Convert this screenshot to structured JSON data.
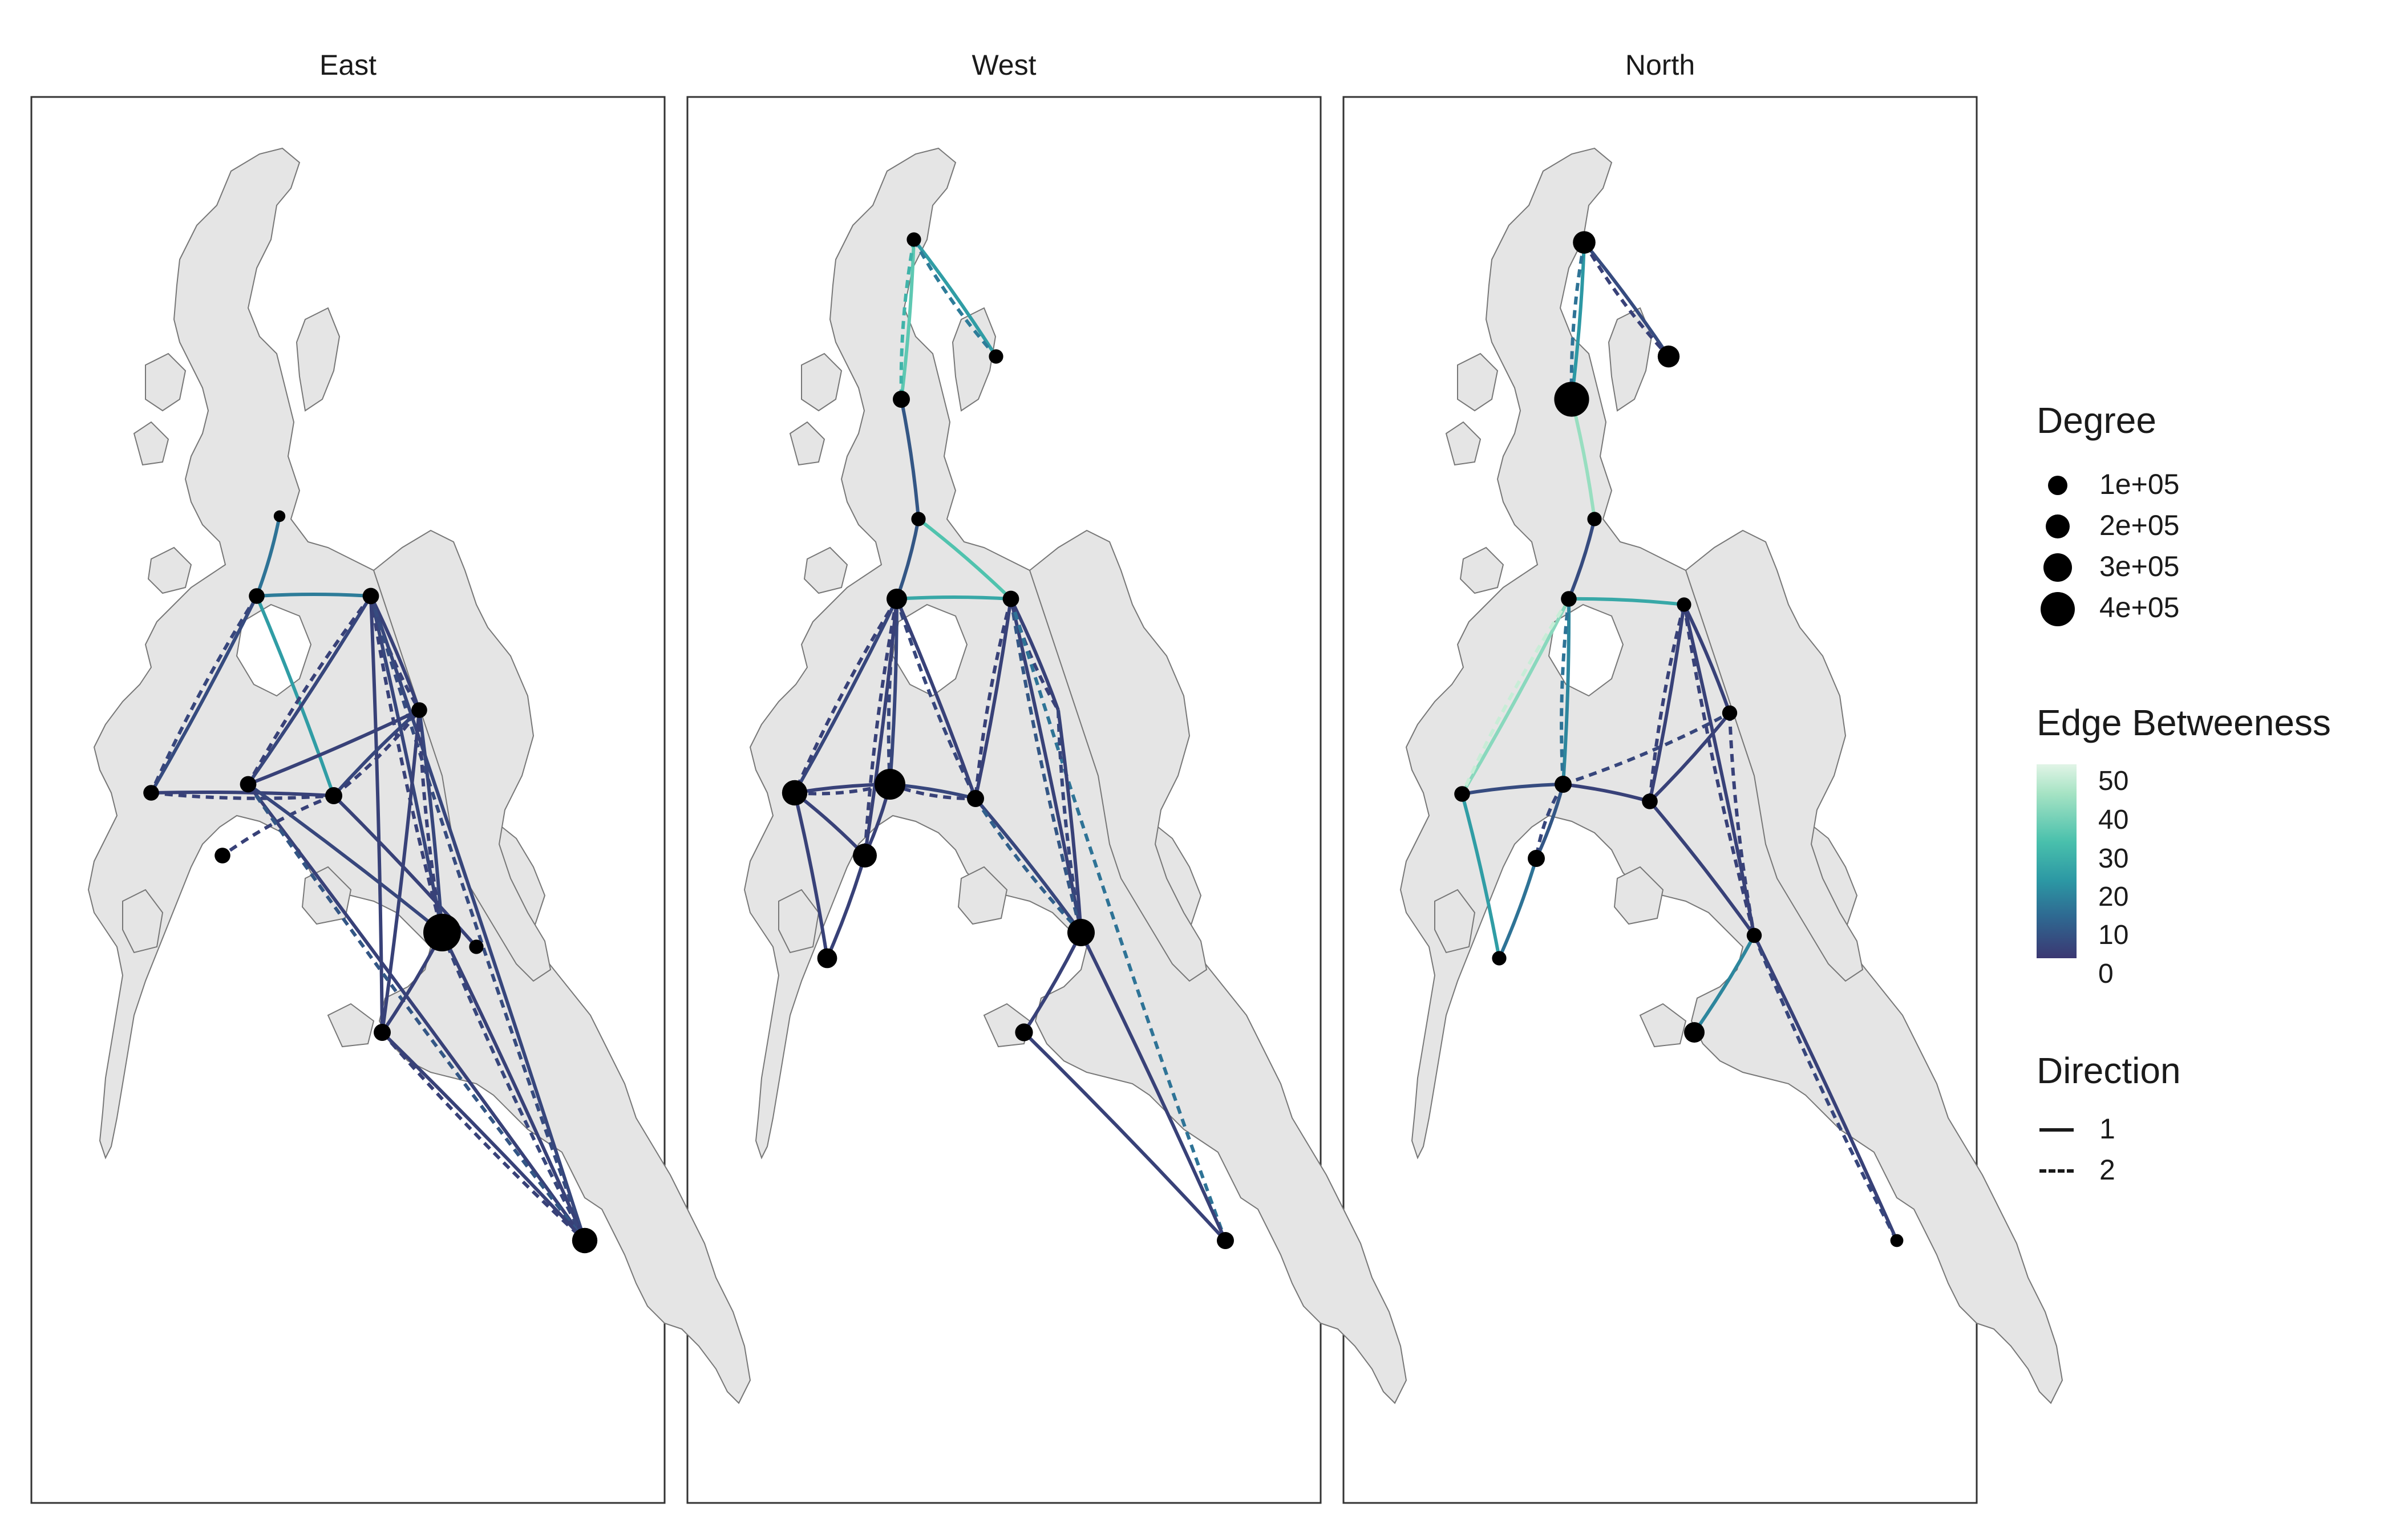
{
  "panels": [
    {
      "title": "East",
      "nodes": [
        {
          "id": "n1",
          "deg": 0.2
        },
        {
          "id": "n2",
          "deg": 0.8
        },
        {
          "id": "n3",
          "deg": 0.9
        },
        {
          "id": "n5",
          "deg": 0.8
        },
        {
          "id": "n8",
          "deg": 1.0
        },
        {
          "id": "n9",
          "deg": 0.8
        },
        {
          "id": "n10",
          "deg": 0.8
        },
        {
          "id": "n11",
          "deg": 0.6
        },
        {
          "id": "n12",
          "deg": 0.9
        },
        {
          "id": "n15",
          "deg": 4.0
        },
        {
          "id": "n16",
          "deg": 1.0
        },
        {
          "id": "n17",
          "deg": 2.2
        }
      ],
      "edges": [
        {
          "from": "n1",
          "to": "n2",
          "dir": 1,
          "btw": 12
        },
        {
          "from": "n2",
          "to": "n3",
          "dir": 1,
          "btw": 14
        },
        {
          "from": "n2",
          "to": "n8",
          "dir": 1,
          "btw": 22
        },
        {
          "from": "n2",
          "to": "n5",
          "dir": 1,
          "btw": 4
        },
        {
          "from": "n2",
          "to": "n5",
          "dir": 2,
          "btw": 3
        },
        {
          "from": "n3",
          "to": "n9",
          "dir": 1,
          "btw": 2
        },
        {
          "from": "n3",
          "to": "n9",
          "dir": 2,
          "btw": 2
        },
        {
          "from": "n3",
          "to": "n12",
          "dir": 1,
          "btw": 3
        },
        {
          "from": "n3",
          "to": "n12",
          "dir": 2,
          "btw": 2
        },
        {
          "from": "n3",
          "to": "n15",
          "dir": 1,
          "btw": 3
        },
        {
          "from": "n3",
          "to": "n15",
          "dir": 2,
          "btw": 2
        },
        {
          "from": "n3",
          "to": "n17",
          "dir": 1,
          "btw": 3
        },
        {
          "from": "n3",
          "to": "n17",
          "dir": 2,
          "btw": 4
        },
        {
          "from": "n3",
          "to": "n16",
          "dir": 1,
          "btw": 2
        },
        {
          "from": "n5",
          "to": "n8",
          "dir": 1,
          "btw": 2
        },
        {
          "from": "n5",
          "to": "n8",
          "dir": 2,
          "btw": 2
        },
        {
          "from": "n8",
          "to": "n9",
          "dir": 1,
          "btw": 3
        },
        {
          "from": "n8",
          "to": "n9",
          "dir": 2,
          "btw": 2
        },
        {
          "from": "n8",
          "to": "n10",
          "dir": 2,
          "btw": 2
        },
        {
          "from": "n8",
          "to": "n11",
          "dir": 1,
          "btw": 2
        },
        {
          "from": "n9",
          "to": "n12",
          "dir": 1,
          "btw": 2
        },
        {
          "from": "n9",
          "to": "n15",
          "dir": 1,
          "btw": 3
        },
        {
          "from": "n9",
          "to": "n15",
          "dir": 2,
          "btw": 2
        },
        {
          "from": "n9",
          "to": "n16",
          "dir": 1,
          "btw": 2
        },
        {
          "from": "n12",
          "to": "n15",
          "dir": 1,
          "btw": 3
        },
        {
          "from": "n12",
          "to": "n17",
          "dir": 1,
          "btw": 2
        },
        {
          "from": "n12",
          "to": "n17",
          "dir": 2,
          "btw": 6
        },
        {
          "from": "n15",
          "to": "n17",
          "dir": 1,
          "btw": 2
        },
        {
          "from": "n15",
          "to": "n17",
          "dir": 2,
          "btw": 3
        },
        {
          "from": "n15",
          "to": "n16",
          "dir": 1,
          "btw": 2
        },
        {
          "from": "n16",
          "to": "n17",
          "dir": 1,
          "btw": 2
        },
        {
          "from": "n16",
          "to": "n17",
          "dir": 2,
          "btw": 2
        }
      ]
    },
    {
      "title": "West",
      "nodes": [
        {
          "id": "n4",
          "deg": 0.6
        },
        {
          "id": "n6",
          "deg": 0.6
        },
        {
          "id": "n7",
          "deg": 1.0
        },
        {
          "id": "n0",
          "deg": 0.6
        },
        {
          "id": "n3",
          "deg": 0.9
        },
        {
          "id": "n2",
          "deg": 1.5
        },
        {
          "id": "n5",
          "deg": 2.2
        },
        {
          "id": "n6b",
          "deg": 3.0
        },
        {
          "id": "n13",
          "deg": 2.0
        },
        {
          "id": "n14",
          "deg": 1.4
        },
        {
          "id": "n8",
          "deg": 1.0
        },
        {
          "id": "n12",
          "deg": 0.9
        },
        {
          "id": "n15",
          "deg": 2.5
        },
        {
          "id": "n16",
          "deg": 1.1
        },
        {
          "id": "n17",
          "deg": 1.0
        }
      ],
      "edges": [
        {
          "from": "n4",
          "to": "n6",
          "dir": 1,
          "btw": 22
        },
        {
          "from": "n4",
          "to": "n6",
          "dir": 2,
          "btw": 14
        },
        {
          "from": "n4",
          "to": "n7",
          "dir": 1,
          "btw": 38
        },
        {
          "from": "n4",
          "to": "n7",
          "dir": 2,
          "btw": 30
        },
        {
          "from": "n7",
          "to": "n0",
          "dir": 1,
          "btw": 6
        },
        {
          "from": "n0",
          "to": "n2",
          "dir": 1,
          "btw": 6
        },
        {
          "from": "n0",
          "to": "n3",
          "dir": 1,
          "btw": 36
        },
        {
          "from": "n2",
          "to": "n3",
          "dir": 1,
          "btw": 26
        },
        {
          "from": "n2",
          "to": "n5",
          "dir": 1,
          "btw": 3
        },
        {
          "from": "n2",
          "to": "n5",
          "dir": 2,
          "btw": 2
        },
        {
          "from": "n2",
          "to": "n6b",
          "dir": 1,
          "btw": 3
        },
        {
          "from": "n2",
          "to": "n6b",
          "dir": 2,
          "btw": 3
        },
        {
          "from": "n2",
          "to": "n13",
          "dir": 1,
          "btw": 2
        },
        {
          "from": "n2",
          "to": "n13",
          "dir": 2,
          "btw": 2
        },
        {
          "from": "n2",
          "to": "n8",
          "dir": 1,
          "btw": 2
        },
        {
          "from": "n2",
          "to": "n8",
          "dir": 2,
          "btw": 3
        },
        {
          "from": "n3",
          "to": "n8",
          "dir": 1,
          "btw": 2
        },
        {
          "from": "n3",
          "to": "n8",
          "dir": 2,
          "btw": 2
        },
        {
          "from": "n3",
          "to": "n9w",
          "dir": 1,
          "btw": 2
        },
        {
          "from": "n3",
          "to": "n9w",
          "dir": 2,
          "btw": 2
        },
        {
          "from": "n3",
          "to": "n15",
          "dir": 1,
          "btw": 2
        },
        {
          "from": "n3",
          "to": "n15",
          "dir": 2,
          "btw": 6
        },
        {
          "from": "n3",
          "to": "n17",
          "dir": 2,
          "btw": 12
        },
        {
          "from": "n5",
          "to": "n6b",
          "dir": 1,
          "btw": 2
        },
        {
          "from": "n5",
          "to": "n6b",
          "dir": 2,
          "btw": 2
        },
        {
          "from": "n5",
          "to": "n13",
          "dir": 1,
          "btw": 2
        },
        {
          "from": "n5",
          "to": "n14",
          "dir": 1,
          "btw": 2
        },
        {
          "from": "n6b",
          "to": "n13",
          "dir": 1,
          "btw": 2
        },
        {
          "from": "n6b",
          "to": "n8",
          "dir": 1,
          "btw": 3
        },
        {
          "from": "n6b",
          "to": "n8",
          "dir": 2,
          "btw": 2
        },
        {
          "from": "n13",
          "to": "n14",
          "dir": 1,
          "btw": 2
        },
        {
          "from": "n8",
          "to": "n15",
          "dir": 1,
          "btw": 3
        },
        {
          "from": "n8",
          "to": "n15",
          "dir": 2,
          "btw": 8
        },
        {
          "from": "n9w",
          "to": "n15",
          "dir": 1,
          "btw": 2
        },
        {
          "from": "n9w",
          "to": "n15",
          "dir": 2,
          "btw": 3
        },
        {
          "from": "n15",
          "to": "n16",
          "dir": 1,
          "btw": 2
        },
        {
          "from": "n15",
          "to": "n17",
          "dir": 1,
          "btw": 2
        },
        {
          "from": "n16",
          "to": "n17",
          "dir": 1,
          "btw": 2
        },
        {
          "from": "n12",
          "to": "n16",
          "dir": 2,
          "btw": 10
        }
      ]
    },
    {
      "title": "North",
      "nodes": [
        {
          "id": "n4",
          "deg": 1.8
        },
        {
          "id": "n6",
          "deg": 1.7
        },
        {
          "id": "n7",
          "deg": 3.6
        },
        {
          "id": "n0",
          "deg": 0.6
        },
        {
          "id": "n2",
          "deg": 0.8
        },
        {
          "id": "n3",
          "deg": 0.6
        },
        {
          "id": "n9",
          "deg": 0.7
        },
        {
          "id": "n10",
          "deg": 0.8
        },
        {
          "id": "n8",
          "deg": 1.0
        },
        {
          "id": "n12",
          "deg": 0.8
        },
        {
          "id": "n13",
          "deg": 1.0
        },
        {
          "id": "n14",
          "deg": 0.6
        },
        {
          "id": "n15",
          "deg": 0.7
        },
        {
          "id": "n16",
          "deg": 1.5
        },
        {
          "id": "n17",
          "deg": 0.4
        }
      ],
      "edges": [
        {
          "from": "n4",
          "to": "n6",
          "dir": 1,
          "btw": 4
        },
        {
          "from": "n4",
          "to": "n6",
          "dir": 2,
          "btw": 2
        },
        {
          "from": "n4",
          "to": "n7",
          "dir": 1,
          "btw": 20
        },
        {
          "from": "n4",
          "to": "n7",
          "dir": 2,
          "btw": 12
        },
        {
          "from": "n7",
          "to": "n0",
          "dir": 1,
          "btw": 46
        },
        {
          "from": "n0",
          "to": "n2",
          "dir": 1,
          "btw": 4
        },
        {
          "from": "n2",
          "to": "n3",
          "dir": 1,
          "btw": 26
        },
        {
          "from": "n2",
          "to": "n10",
          "dir": 1,
          "btw": 44
        },
        {
          "from": "n2",
          "to": "n10",
          "dir": 2,
          "btw": 52
        },
        {
          "from": "n2",
          "to": "n8",
          "dir": 1,
          "btw": 16
        },
        {
          "from": "n2",
          "to": "n8",
          "dir": 2,
          "btw": 12
        },
        {
          "from": "n10",
          "to": "n14",
          "dir": 1,
          "btw": 22
        },
        {
          "from": "n10",
          "to": "n8",
          "dir": 1,
          "btw": 4
        },
        {
          "from": "n8",
          "to": "n13",
          "dir": 1,
          "btw": 6
        },
        {
          "from": "n8",
          "to": "n13",
          "dir": 2,
          "btw": 3
        },
        {
          "from": "n8",
          "to": "n12",
          "dir": 1,
          "btw": 2
        },
        {
          "from": "n8",
          "to": "n9",
          "dir": 2,
          "btw": 3
        },
        {
          "from": "n13",
          "to": "n14",
          "dir": 1,
          "btw": 12
        },
        {
          "from": "n3",
          "to": "n9",
          "dir": 1,
          "btw": 2
        },
        {
          "from": "n3",
          "to": "n12",
          "dir": 1,
          "btw": 2
        },
        {
          "from": "n3",
          "to": "n12",
          "dir": 2,
          "btw": 2
        },
        {
          "from": "n3",
          "to": "n15",
          "dir": 1,
          "btw": 2
        },
        {
          "from": "n3",
          "to": "n15",
          "dir": 2,
          "btw": 2
        },
        {
          "from": "n9",
          "to": "n12",
          "dir": 1,
          "btw": 2
        },
        {
          "from": "n9",
          "to": "n15",
          "dir": 2,
          "btw": 2
        },
        {
          "from": "n12",
          "to": "n15",
          "dir": 1,
          "btw": 2
        },
        {
          "from": "n15",
          "to": "n16",
          "dir": 1,
          "btw": 16
        },
        {
          "from": "n15",
          "to": "n17",
          "dir": 1,
          "btw": 2
        },
        {
          "from": "n15",
          "to": "n17",
          "dir": 2,
          "btw": 3
        }
      ]
    }
  ],
  "legend": {
    "degree": {
      "title": "Degree",
      "items": [
        {
          "label": "1e+05",
          "value": 100000
        },
        {
          "label": "2e+05",
          "value": 200000
        },
        {
          "label": "3e+05",
          "value": 300000
        },
        {
          "label": "4e+05",
          "value": 400000
        }
      ]
    },
    "betweenness": {
      "title": "Edge Betweeness",
      "ticks": [
        "50",
        "40",
        "30",
        "20",
        "10",
        "0"
      ],
      "tick_values": [
        50,
        40,
        30,
        20,
        10,
        0
      ],
      "range": [
        0,
        55
      ],
      "colors": [
        "#3b3772",
        "#2e6a92",
        "#2c98a4",
        "#49c0ac",
        "#a6e3c4",
        "#e1f4e6"
      ]
    },
    "direction": {
      "title": "Direction",
      "items": [
        {
          "label": "1",
          "style": "solid"
        },
        {
          "label": "2",
          "style": "dashed"
        }
      ]
    }
  },
  "colors": {
    "land": "#e5e5e5",
    "land_stroke": "#777777",
    "node": "#000000",
    "frame": "#333333"
  }
}
